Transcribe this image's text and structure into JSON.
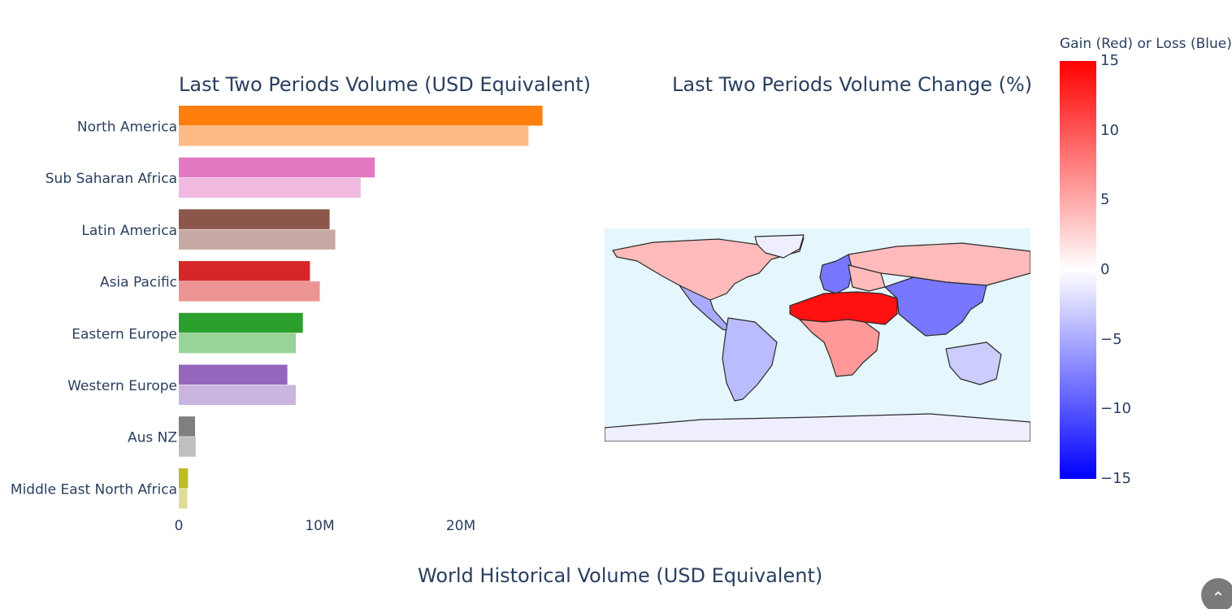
{
  "chart_data": [
    {
      "type": "bar",
      "orientation": "horizontal",
      "title": "Last Two Periods Volume (USD Equivalent)",
      "categories": [
        "North America",
        "Sub Saharan Africa",
        "Latin America",
        "Asia Pacific",
        "Eastern Europe",
        "Western Europe",
        "Aus NZ",
        "Middle East North Africa"
      ],
      "series": [
        {
          "values": [
            25.8,
            13.9,
            10.7,
            9.3,
            8.8,
            7.7,
            1.15,
            0.65
          ],
          "colors": [
            "#ff7f0e",
            "#e377c2",
            "#8c564b",
            "#d62728",
            "#2ca02c",
            "#9467bd",
            "#7f7f7f",
            "#bcbd22"
          ]
        },
        {
          "values": [
            24.8,
            12.9,
            11.1,
            10.0,
            8.3,
            8.3,
            1.2,
            0.6
          ],
          "colors": [
            "#ffbb84",
            "#f0b9e0",
            "#c6a9a4",
            "#ed9594",
            "#98d397",
            "#cab5df",
            "#bfbfbf",
            "#dedd94"
          ]
        }
      ],
      "xaxis": {
        "ticks": [
          0,
          10,
          20
        ],
        "tick_labels": [
          "0",
          "10M",
          "20M"
        ],
        "range": [
          0,
          27.5
        ]
      }
    },
    {
      "type": "choropleth",
      "title": "Last Two Periods Volume Change (%)",
      "colorbar": {
        "title": "Gain (Red) or Loss (Blue)",
        "range": [
          -15,
          15
        ],
        "ticks": [
          15,
          10,
          5,
          0,
          -5,
          -10,
          -15
        ],
        "tick_labels": [
          "15",
          "10",
          "5",
          "0",
          "−5",
          "−10",
          "−15"
        ],
        "colors": [
          "#ff0000",
          "#ffffff",
          "#0000ff"
        ]
      },
      "regions": [
        {
          "region": "North America",
          "value": 4
        },
        {
          "region": "Greenland",
          "value": -1
        },
        {
          "region": "Mexico and Central America",
          "value": -5
        },
        {
          "region": "South America",
          "value": -4
        },
        {
          "region": "Russia",
          "value": 4
        },
        {
          "region": "Western Europe",
          "value": -8
        },
        {
          "region": "Eastern Europe",
          "value": 4
        },
        {
          "region": "North Africa and Middle East",
          "value": 14
        },
        {
          "region": "Sub Saharan Africa",
          "value": 6
        },
        {
          "region": "Asia",
          "value": -8
        },
        {
          "region": "Australia",
          "value": -3
        },
        {
          "region": "Antarctica",
          "value": -1
        }
      ]
    }
  ],
  "page": {
    "bottom_title": "World Historical Volume (USD Equivalent)",
    "scroll_icon": "chevron-up-icon"
  }
}
